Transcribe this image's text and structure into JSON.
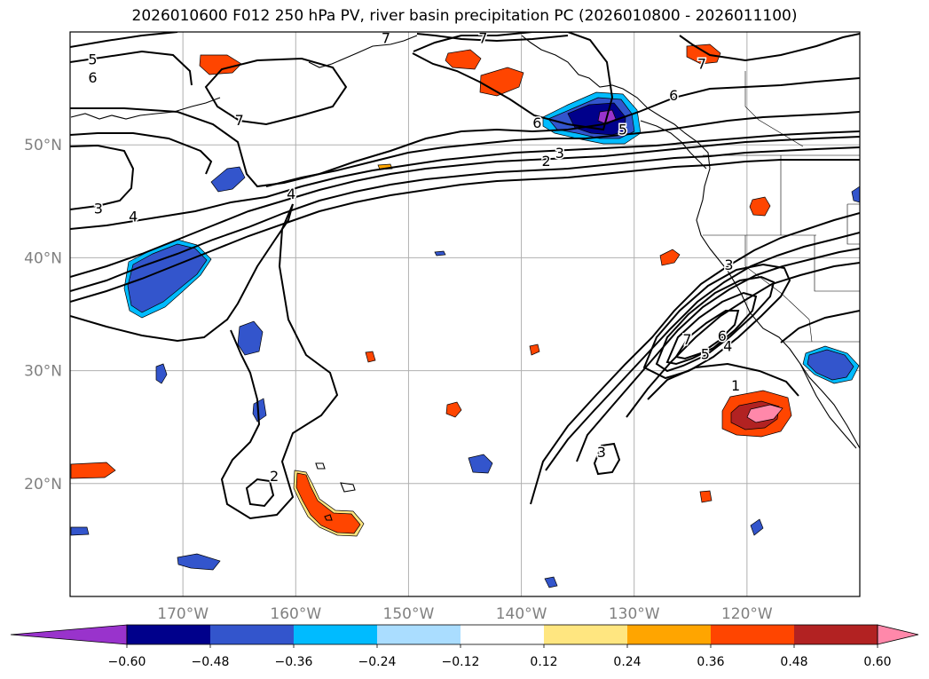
{
  "title": "2026010600 F012 250 hPa PV, river basin precipitation PC (2026010800 - 2026011100)",
  "chart_data": {
    "type": "map",
    "projection": "equirectangular",
    "lon_range": [
      -180,
      -110
    ],
    "lat_range": [
      10,
      60
    ],
    "lon_ticks": [
      {
        "lon": -170,
        "label": "170°W"
      },
      {
        "lon": -160,
        "label": "160°W"
      },
      {
        "lon": -150,
        "label": "150°W"
      },
      {
        "lon": -140,
        "label": "140°W"
      },
      {
        "lon": -130,
        "label": "130°W"
      },
      {
        "lon": -120,
        "label": "120°W"
      }
    ],
    "lat_ticks": [
      {
        "lat": 20,
        "label": "20°N"
      },
      {
        "lat": 30,
        "label": "30°N"
      },
      {
        "lat": 40,
        "label": "40°N"
      },
      {
        "lat": 50,
        "label": "50°N"
      }
    ],
    "colorbar": {
      "ticks": [
        "−0.60",
        "−0.48",
        "−0.36",
        "−0.24",
        "−0.12",
        "0.12",
        "0.24",
        "0.36",
        "0.48",
        "0.60"
      ],
      "colors": [
        "#9933cc",
        "#00008b",
        "#3355cc",
        "#00bbff",
        "#aaddff",
        "#ffffff",
        "#ffe680",
        "#ffa500",
        "#ff4500",
        "#b22222",
        "#ff88aa"
      ]
    },
    "pv_contour_labels": [
      {
        "text": "5",
        "lon": -178,
        "lat": 57.6
      },
      {
        "text": "6",
        "lon": -178,
        "lat": 56.0
      },
      {
        "text": "7",
        "lon": -152,
        "lat": 59.5
      },
      {
        "text": "7",
        "lon": -143.4,
        "lat": 59.5
      },
      {
        "text": "7",
        "lon": -124,
        "lat": 57.2
      },
      {
        "text": "7",
        "lon": -165,
        "lat": 52.2
      },
      {
        "text": "6",
        "lon": -126.5,
        "lat": 54.4
      },
      {
        "text": "6",
        "lon": -138.6,
        "lat": 52.0
      },
      {
        "text": "5",
        "lon": -131,
        "lat": 51.4
      },
      {
        "text": "3",
        "lon": -136.6,
        "lat": 49.3
      },
      {
        "text": "2",
        "lon": -137.8,
        "lat": 48.6
      },
      {
        "text": "4",
        "lon": -160.4,
        "lat": 45.7
      },
      {
        "text": "3",
        "lon": -177.5,
        "lat": 44.4
      },
      {
        "text": "4",
        "lon": -174.4,
        "lat": 43.7
      },
      {
        "text": "3",
        "lon": -121.6,
        "lat": 39.4
      },
      {
        "text": "7",
        "lon": -125.3,
        "lat": 32.8
      },
      {
        "text": "6",
        "lon": -122.2,
        "lat": 33.1
      },
      {
        "text": "5",
        "lon": -123.7,
        "lat": 31.5
      },
      {
        "text": "4",
        "lon": -121.7,
        "lat": 32.2
      },
      {
        "text": "1",
        "lon": -121.0,
        "lat": 28.7
      },
      {
        "text": "3",
        "lon": -132.9,
        "lat": 22.8
      },
      {
        "text": "2",
        "lon": -161.9,
        "lat": 20.7
      }
    ]
  }
}
